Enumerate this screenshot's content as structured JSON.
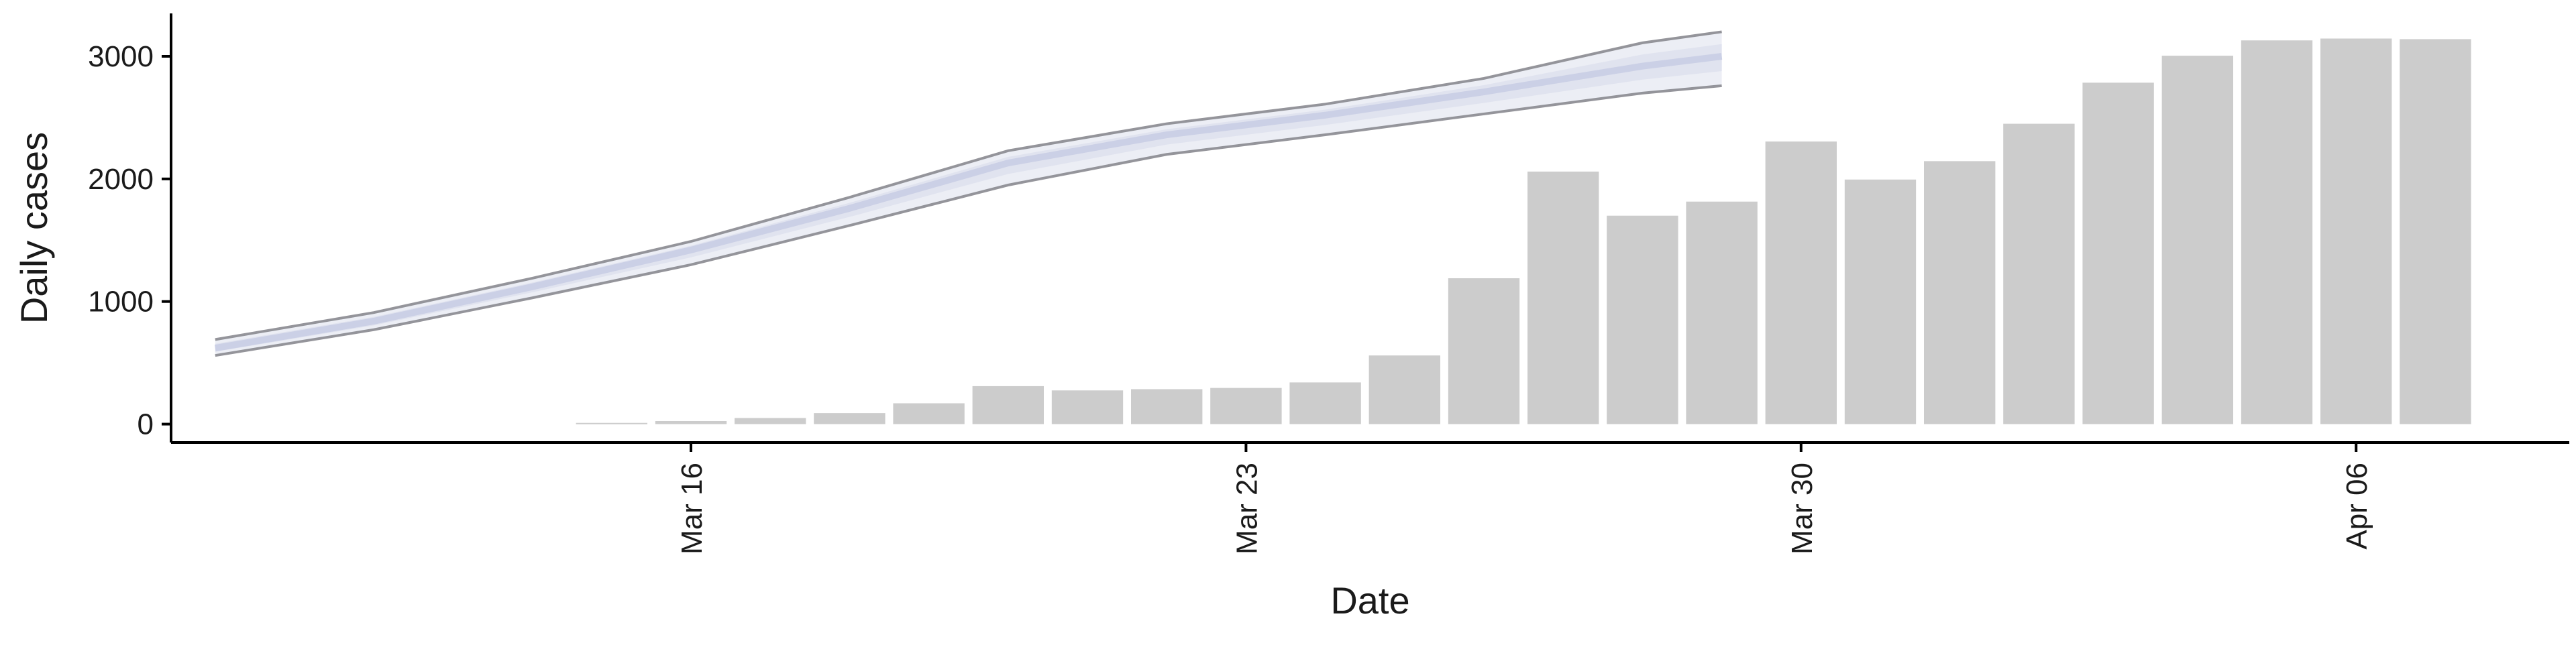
{
  "chart_data": {
    "type": "bar",
    "title": "",
    "xlabel": "Date",
    "ylabel": "Daily cases",
    "ylim": [
      -150,
      3350
    ],
    "x_ticks": [
      "Mar 16",
      "Mar 23",
      "Mar 30",
      "Apr 06"
    ],
    "x_tick_dates": [
      "2020-03-16",
      "2020-03-23",
      "2020-03-30",
      "2020-04-06"
    ],
    "y_ticks": [
      0,
      1000,
      2000,
      3000
    ],
    "y_tick_labels": [
      "0",
      "1000",
      "2000",
      "3000"
    ],
    "grid": false,
    "bar_color": "#cccccc",
    "bars": {
      "dates": [
        "2020-03-15",
        "2020-03-16",
        "2020-03-17",
        "2020-03-18",
        "2020-03-19",
        "2020-03-20",
        "2020-03-21",
        "2020-03-22",
        "2020-03-23",
        "2020-03-24",
        "2020-03-25",
        "2020-03-26",
        "2020-03-27",
        "2020-03-28",
        "2020-03-29",
        "2020-03-30",
        "2020-03-31",
        "2020-04-01",
        "2020-04-02",
        "2020-04-03",
        "2020-04-04",
        "2020-04-05",
        "2020-04-06",
        "2020-04-07"
      ],
      "values": [
        10,
        25,
        50,
        90,
        170,
        310,
        275,
        285,
        295,
        340,
        560,
        1190,
        2060,
        1700,
        1815,
        2305,
        1995,
        2145,
        2450,
        2785,
        3005,
        3130,
        3145,
        3140
      ]
    },
    "band": {
      "color": "#dde0ed",
      "outline_color": "#8a8a90",
      "dates": [
        "2020-03-10",
        "2020-03-12",
        "2020-03-14",
        "2020-03-16",
        "2020-03-18",
        "2020-03-20",
        "2020-03-22",
        "2020-03-24",
        "2020-03-26",
        "2020-03-28",
        "2020-03-29"
      ],
      "median": [
        620,
        840,
        1120,
        1420,
        1760,
        2130,
        2360,
        2520,
        2710,
        2920,
        3000
      ],
      "lower": [
        560,
        770,
        1030,
        1300,
        1620,
        1950,
        2200,
        2360,
        2530,
        2700,
        2760
      ],
      "upper": [
        690,
        910,
        1190,
        1490,
        1850,
        2230,
        2450,
        2610,
        2820,
        3110,
        3200
      ]
    }
  }
}
